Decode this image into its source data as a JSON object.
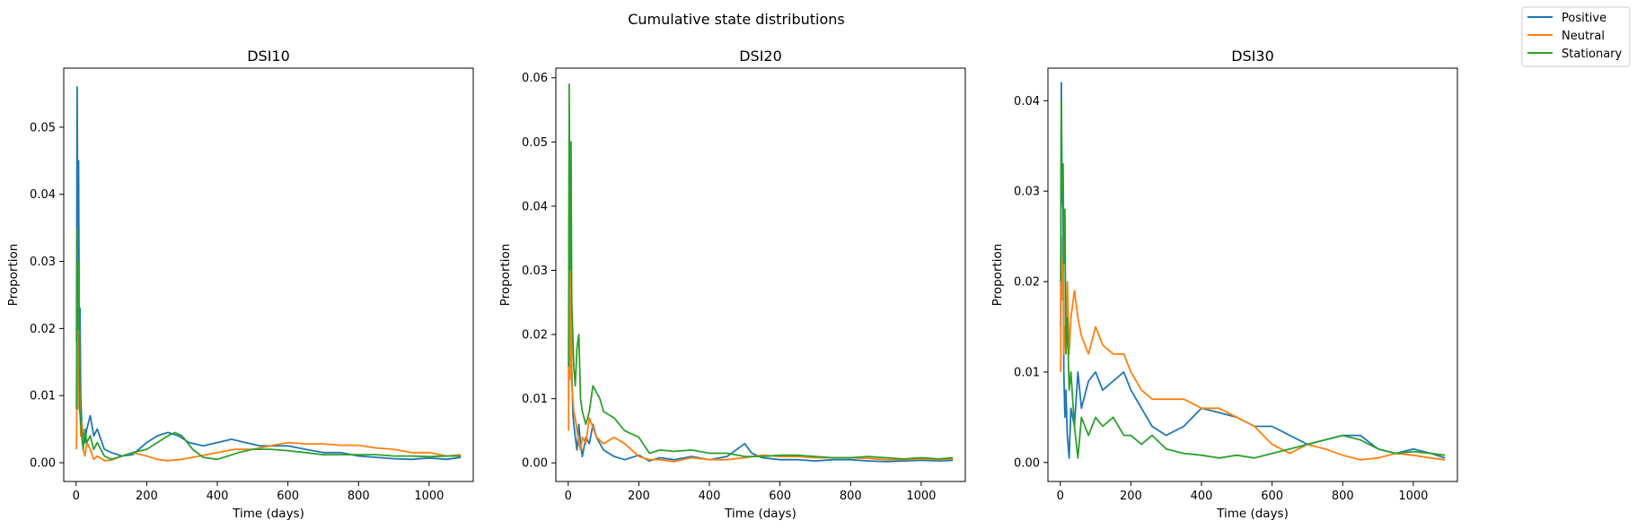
{
  "figure": {
    "suptitle": "Cumulative state distributions"
  },
  "legend": {
    "placement": "top-right (outside plots)",
    "entries": [
      {
        "label": "Positive",
        "color": "#1f77b4"
      },
      {
        "label": "Neutral",
        "color": "#ff7f0e"
      },
      {
        "label": "Stationary",
        "color": "#2ca02c"
      }
    ]
  },
  "chart_data": [
    {
      "type": "line",
      "title": "DSI10",
      "xlabel": "Time (days)",
      "ylabel": "Proportion",
      "xlim": [
        -35,
        1125
      ],
      "ylim": [
        -0.0028,
        0.0588
      ],
      "xticks": [
        0,
        200,
        400,
        600,
        800,
        1000
      ],
      "xtick_labels": [
        "0",
        "200",
        "400",
        "600",
        "800",
        "1000"
      ],
      "yticks": [
        0.0,
        0.01,
        0.02,
        0.03,
        0.04,
        0.05
      ],
      "ytick_labels": [
        "0.00",
        "0.01",
        "0.02",
        "0.03",
        "0.04",
        "0.05"
      ],
      "grid": false,
      "series": [
        {
          "name": "Positive",
          "color": "#1f77b4",
          "x": [
            1,
            3,
            5,
            7,
            9,
            11,
            13,
            16,
            20,
            25,
            30,
            40,
            50,
            60,
            80,
            100,
            130,
            160,
            200,
            230,
            260,
            290,
            320,
            360,
            400,
            440,
            480,
            520,
            560,
            600,
            650,
            700,
            750,
            800,
            850,
            900,
            950,
            1000,
            1050,
            1090
          ],
          "y": [
            0.018,
            0.056,
            0.03,
            0.045,
            0.02,
            0.023,
            0.01,
            0.006,
            0.004,
            0.003,
            0.005,
            0.007,
            0.004,
            0.005,
            0.002,
            0.0015,
            0.001,
            0.0012,
            0.003,
            0.004,
            0.0045,
            0.004,
            0.003,
            0.0025,
            0.003,
            0.0035,
            0.003,
            0.0025,
            0.0025,
            0.0025,
            0.002,
            0.0015,
            0.0015,
            0.001,
            0.0008,
            0.0006,
            0.0005,
            0.0007,
            0.0005,
            0.0008
          ]
        },
        {
          "name": "Neutral",
          "color": "#ff7f0e",
          "x": [
            1,
            3,
            5,
            8,
            10,
            13,
            16,
            20,
            25,
            30,
            40,
            50,
            60,
            80,
            100,
            130,
            160,
            200,
            230,
            260,
            300,
            350,
            400,
            450,
            500,
            550,
            600,
            650,
            700,
            750,
            800,
            850,
            900,
            950,
            1000,
            1050,
            1090
          ],
          "y": [
            0.002,
            0.02,
            0.008,
            0.025,
            0.012,
            0.004,
            0.006,
            0.002,
            0.001,
            0.003,
            0.002,
            0.0005,
            0.001,
            0.0003,
            0.0004,
            0.001,
            0.0015,
            0.001,
            0.0005,
            0.0003,
            0.0005,
            0.001,
            0.0015,
            0.002,
            0.002,
            0.0025,
            0.003,
            0.0028,
            0.0028,
            0.0026,
            0.0026,
            0.0022,
            0.002,
            0.0015,
            0.0015,
            0.001,
            0.0012
          ]
        },
        {
          "name": "Stationary",
          "color": "#2ca02c",
          "x": [
            1,
            3,
            5,
            8,
            10,
            13,
            16,
            20,
            25,
            30,
            40,
            50,
            60,
            80,
            100,
            130,
            160,
            200,
            230,
            260,
            280,
            300,
            330,
            360,
            400,
            430,
            460,
            500,
            550,
            600,
            650,
            700,
            750,
            800,
            850,
            900,
            950,
            1000,
            1050,
            1090
          ],
          "y": [
            0.008,
            0.035,
            0.02,
            0.03,
            0.008,
            0.006,
            0.004,
            0.002,
            0.005,
            0.003,
            0.004,
            0.002,
            0.003,
            0.001,
            0.0005,
            0.001,
            0.0015,
            0.002,
            0.003,
            0.004,
            0.0045,
            0.004,
            0.002,
            0.0008,
            0.0005,
            0.001,
            0.0015,
            0.002,
            0.002,
            0.0018,
            0.0015,
            0.0012,
            0.0012,
            0.0012,
            0.0012,
            0.001,
            0.001,
            0.0009,
            0.001,
            0.001
          ]
        }
      ]
    },
    {
      "type": "line",
      "title": "DSI20",
      "xlabel": "Time (days)",
      "ylabel": "Proportion",
      "xlim": [
        -35,
        1125
      ],
      "ylim": [
        -0.0029,
        0.0615
      ],
      "xticks": [
        0,
        200,
        400,
        600,
        800,
        1000
      ],
      "xtick_labels": [
        "0",
        "200",
        "400",
        "600",
        "800",
        "1000"
      ],
      "yticks": [
        0.0,
        0.01,
        0.02,
        0.03,
        0.04,
        0.05,
        0.06
      ],
      "ytick_labels": [
        "0.00",
        "0.01",
        "0.02",
        "0.03",
        "0.04",
        "0.05",
        "0.06"
      ],
      "grid": false,
      "series": [
        {
          "name": "Positive",
          "color": "#1f77b4",
          "x": [
            1,
            3,
            5,
            8,
            10,
            13,
            16,
            20,
            25,
            30,
            35,
            40,
            50,
            60,
            70,
            80,
            100,
            130,
            160,
            200,
            230,
            260,
            300,
            350,
            400,
            450,
            500,
            520,
            550,
            600,
            650,
            700,
            750,
            800,
            850,
            900,
            950,
            1000,
            1050,
            1090
          ],
          "y": [
            0.01,
            0.048,
            0.035,
            0.045,
            0.015,
            0.008,
            0.006,
            0.004,
            0.002,
            0.006,
            0.003,
            0.001,
            0.004,
            0.003,
            0.006,
            0.004,
            0.002,
            0.001,
            0.0005,
            0.0012,
            0.0003,
            0.0008,
            0.0005,
            0.001,
            0.0005,
            0.001,
            0.003,
            0.0015,
            0.0008,
            0.0005,
            0.0005,
            0.0003,
            0.0005,
            0.0005,
            0.0003,
            0.0002,
            0.0003,
            0.0004,
            0.0003,
            0.0004
          ]
        },
        {
          "name": "Neutral",
          "color": "#ff7f0e",
          "x": [
            1,
            3,
            5,
            8,
            10,
            13,
            16,
            20,
            25,
            30,
            35,
            40,
            50,
            60,
            80,
            100,
            130,
            160,
            200,
            230,
            260,
            300,
            350,
            400,
            450,
            500,
            550,
            600,
            650,
            700,
            750,
            800,
            850,
            900,
            950,
            1000,
            1050,
            1090
          ],
          "y": [
            0.005,
            0.04,
            0.013,
            0.038,
            0.012,
            0.01,
            0.008,
            0.007,
            0.005,
            0.003,
            0.002,
            0.004,
            0.003,
            0.007,
            0.004,
            0.003,
            0.004,
            0.003,
            0.001,
            0.0005,
            0.0005,
            0.0002,
            0.0008,
            0.0005,
            0.0005,
            0.0008,
            0.0012,
            0.001,
            0.001,
            0.0008,
            0.0008,
            0.0008,
            0.0007,
            0.0005,
            0.0005,
            0.0006,
            0.0005,
            0.0006
          ]
        },
        {
          "name": "Stationary",
          "color": "#2ca02c",
          "x": [
            1,
            3,
            5,
            8,
            10,
            13,
            16,
            20,
            25,
            30,
            35,
            40,
            50,
            60,
            70,
            80,
            90,
            100,
            130,
            160,
            200,
            230,
            260,
            300,
            350,
            400,
            450,
            500,
            550,
            600,
            650,
            700,
            750,
            800,
            850,
            900,
            950,
            1000,
            1050,
            1090
          ],
          "y": [
            0.015,
            0.059,
            0.03,
            0.05,
            0.025,
            0.02,
            0.015,
            0.012,
            0.018,
            0.02,
            0.01,
            0.008,
            0.006,
            0.008,
            0.012,
            0.011,
            0.01,
            0.008,
            0.007,
            0.005,
            0.004,
            0.0015,
            0.002,
            0.0018,
            0.002,
            0.0015,
            0.0015,
            0.001,
            0.001,
            0.0012,
            0.0012,
            0.001,
            0.0008,
            0.0008,
            0.001,
            0.0008,
            0.0006,
            0.0008,
            0.0006,
            0.0008
          ]
        }
      ]
    },
    {
      "type": "line",
      "title": "DSI30",
      "xlabel": "Time (days)",
      "ylabel": "Proportion",
      "xlim": [
        -35,
        1125
      ],
      "ylim": [
        -0.0021,
        0.0436
      ],
      "xticks": [
        0,
        200,
        400,
        600,
        800,
        1000
      ],
      "xtick_labels": [
        "0",
        "200",
        "400",
        "600",
        "800",
        "1000"
      ],
      "yticks": [
        0.0,
        0.01,
        0.02,
        0.03,
        0.04
      ],
      "ytick_labels": [
        "0.00",
        "0.01",
        "0.02",
        "0.03",
        "0.04"
      ],
      "grid": false,
      "series": [
        {
          "name": "Positive",
          "color": "#1f77b4",
          "x": [
            1,
            3,
            5,
            8,
            10,
            13,
            16,
            20,
            25,
            30,
            40,
            50,
            60,
            80,
            100,
            120,
            150,
            180,
            200,
            230,
            260,
            300,
            350,
            400,
            450,
            500,
            550,
            600,
            650,
            700,
            750,
            800,
            850,
            900,
            950,
            1000,
            1050,
            1090
          ],
          "y": [
            0.015,
            0.042,
            0.03,
            0.028,
            0.01,
            0.005,
            0.008,
            0.003,
            0.0005,
            0.006,
            0.004,
            0.01,
            0.006,
            0.009,
            0.01,
            0.008,
            0.009,
            0.01,
            0.008,
            0.006,
            0.004,
            0.003,
            0.004,
            0.006,
            0.0055,
            0.005,
            0.004,
            0.004,
            0.003,
            0.002,
            0.0025,
            0.003,
            0.003,
            0.0015,
            0.001,
            0.0015,
            0.001,
            0.0005
          ]
        },
        {
          "name": "Neutral",
          "color": "#ff7f0e",
          "x": [
            1,
            3,
            5,
            8,
            10,
            13,
            16,
            20,
            25,
            30,
            40,
            50,
            60,
            80,
            100,
            120,
            150,
            180,
            200,
            230,
            260,
            300,
            350,
            400,
            450,
            500,
            550,
            600,
            650,
            700,
            750,
            800,
            850,
            900,
            950,
            1000,
            1050,
            1090
          ],
          "y": [
            0.01,
            0.025,
            0.018,
            0.022,
            0.012,
            0.015,
            0.014,
            0.02,
            0.012,
            0.016,
            0.019,
            0.016,
            0.014,
            0.012,
            0.015,
            0.013,
            0.012,
            0.012,
            0.01,
            0.008,
            0.007,
            0.007,
            0.007,
            0.006,
            0.006,
            0.005,
            0.004,
            0.002,
            0.001,
            0.002,
            0.0015,
            0.0008,
            0.0003,
            0.0005,
            0.001,
            0.0008,
            0.0005,
            0.0003
          ]
        },
        {
          "name": "Stationary",
          "color": "#2ca02c",
          "x": [
            1,
            3,
            5,
            8,
            10,
            13,
            16,
            20,
            25,
            30,
            40,
            50,
            60,
            80,
            100,
            120,
            150,
            180,
            200,
            230,
            260,
            300,
            350,
            400,
            450,
            500,
            550,
            600,
            650,
            700,
            750,
            800,
            850,
            900,
            950,
            1000,
            1050,
            1090
          ],
          "y": [
            0.02,
            0.04,
            0.03,
            0.033,
            0.022,
            0.028,
            0.012,
            0.016,
            0.008,
            0.01,
            0.004,
            0.0005,
            0.005,
            0.003,
            0.005,
            0.004,
            0.005,
            0.003,
            0.003,
            0.002,
            0.003,
            0.0015,
            0.001,
            0.0008,
            0.0005,
            0.0008,
            0.0005,
            0.001,
            0.0015,
            0.002,
            0.0025,
            0.003,
            0.0025,
            0.0015,
            0.001,
            0.0012,
            0.001,
            0.0008
          ]
        }
      ]
    }
  ]
}
